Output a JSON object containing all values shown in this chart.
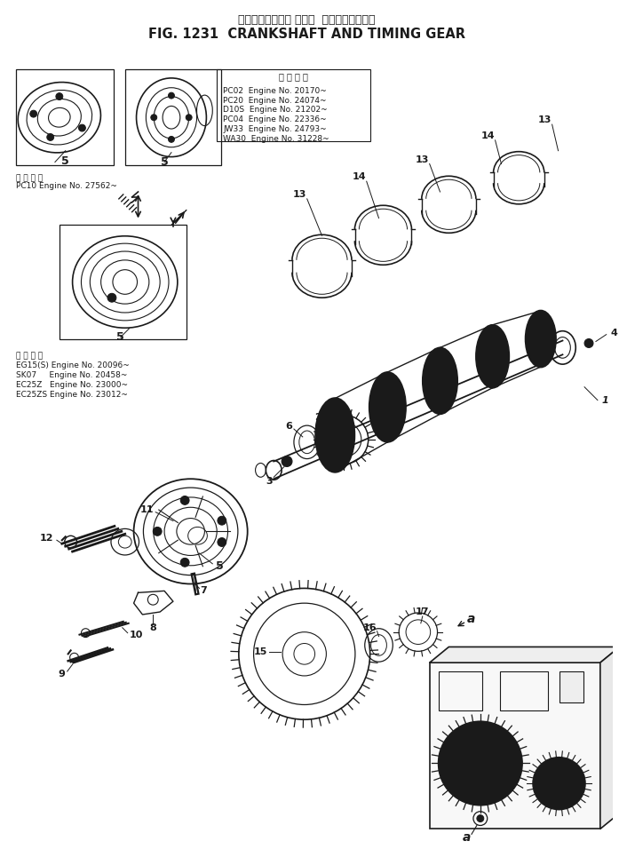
{
  "title_japanese": "クランクシャフト および  タイミングギヤー",
  "title_english": "FIG. 1231  CRANKSHAFT AND TIMING GEAR",
  "bg_color": "#ffffff",
  "line_color": "#1a1a1a",
  "fig_width": 6.97,
  "fig_height": 9.74,
  "engine_table_header": "適 用 号 機",
  "engine_table_lines": [
    "PC02  Engine No. 20170~",
    "PC20  Engine No. 24074~",
    "D10S  Engine No. 21202~",
    "PC04  Engine No. 22336~",
    "JW33  Engine No. 24793~",
    "WA30  Engine No. 31228~"
  ],
  "applicability_note1_header": "適 用 号 機",
  "applicability_note1": "PC10 Engine No. 27562~",
  "applicability_note2_header": "適 用 号 機",
  "applicability_note2_lines": [
    "EG15(S) Engine No. 20096~",
    "SK07     Engine No. 20458~",
    "EC25Z   Engine No. 23000~",
    "EC25ZS Engine No. 23012~"
  ]
}
